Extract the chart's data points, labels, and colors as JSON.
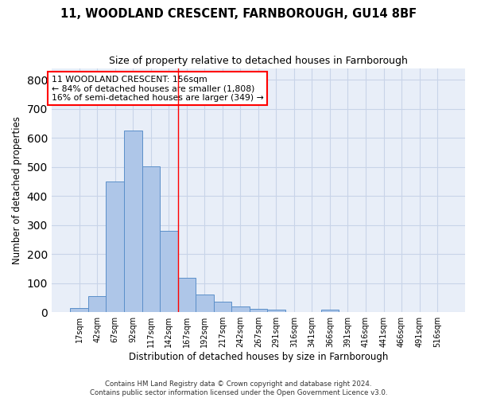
{
  "title": "11, WOODLAND CRESCENT, FARNBOROUGH, GU14 8BF",
  "subtitle": "Size of property relative to detached houses in Farnborough",
  "xlabel": "Distribution of detached houses by size in Farnborough",
  "ylabel": "Number of detached properties",
  "categories": [
    "17sqm",
    "42sqm",
    "67sqm",
    "92sqm",
    "117sqm",
    "142sqm",
    "167sqm",
    "192sqm",
    "217sqm",
    "242sqm",
    "267sqm",
    "291sqm",
    "316sqm",
    "341sqm",
    "366sqm",
    "391sqm",
    "416sqm",
    "441sqm",
    "466sqm",
    "491sqm",
    "516sqm"
  ],
  "values": [
    13,
    55,
    450,
    625,
    503,
    280,
    117,
    62,
    35,
    20,
    11,
    10,
    0,
    0,
    8,
    0,
    0,
    0,
    0,
    0,
    0
  ],
  "bar_color": "#aec6e8",
  "bar_edge_color": "#5b8fc9",
  "grid_color": "#c8d4e8",
  "bg_color": "#e8eef8",
  "vline_x": 5.5,
  "annotation_text": "11 WOODLAND CRESCENT: 156sqm\n← 84% of detached houses are smaller (1,808)\n16% of semi-detached houses are larger (349) →",
  "annotation_box_color": "white",
  "annotation_border_color": "red",
  "footnote": "Contains HM Land Registry data © Crown copyright and database right 2024.\nContains public sector information licensed under the Open Government Licence v3.0.",
  "ylim": [
    0,
    840
  ],
  "yticks": [
    0,
    100,
    200,
    300,
    400,
    500,
    600,
    700,
    800
  ]
}
